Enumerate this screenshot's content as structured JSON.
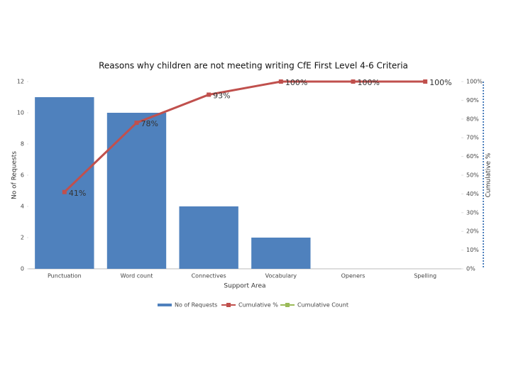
{
  "chart_data": {
    "type": "pareto",
    "title": "Reasons why children are not meeting writing CfE First Level 4-6 Criteria",
    "x_label": "Support Area",
    "y_label": "No of Requests",
    "y2_label": "Cumulative %",
    "categories": [
      "Punctuation",
      "Word count",
      "Connectives",
      "Vocabulary",
      "Openers",
      "Spelling"
    ],
    "series": [
      {
        "name": "No of Requests",
        "type": "bar",
        "color": "#4f81bd",
        "values": [
          11,
          10,
          4,
          2,
          0,
          0
        ]
      },
      {
        "name": "Cumulative %",
        "type": "line",
        "axis": "y2",
        "color": "#c0504d",
        "values": [
          41,
          78,
          93,
          100,
          100,
          100
        ],
        "value_labels": [
          "41%",
          "78%",
          "93%",
          "100%",
          "100%",
          "100%"
        ]
      },
      {
        "name": "Cumulative Count",
        "type": "line",
        "color": "#9bbb59",
        "values": [
          null,
          null,
          null,
          null,
          null,
          null
        ]
      }
    ],
    "ylim": [
      0,
      12
    ],
    "yticks": [
      0,
      2,
      4,
      6,
      8,
      10,
      12
    ],
    "y2lim": [
      0,
      100
    ],
    "y2ticks": [
      {
        "value": 0,
        "label": "0%"
      },
      {
        "value": 10,
        "label": "10%"
      },
      {
        "value": 20,
        "label": "20%"
      },
      {
        "value": 30,
        "label": "30%"
      },
      {
        "value": 40,
        "label": "40%"
      },
      {
        "value": 50,
        "label": "50%"
      },
      {
        "value": 60,
        "label": "60%"
      },
      {
        "value": 70,
        "label": "70%"
      },
      {
        "value": 80,
        "label": "80%"
      },
      {
        "value": 90,
        "label": "90%"
      },
      {
        "value": 100,
        "label": "100%"
      }
    ],
    "legend": "bottom"
  }
}
